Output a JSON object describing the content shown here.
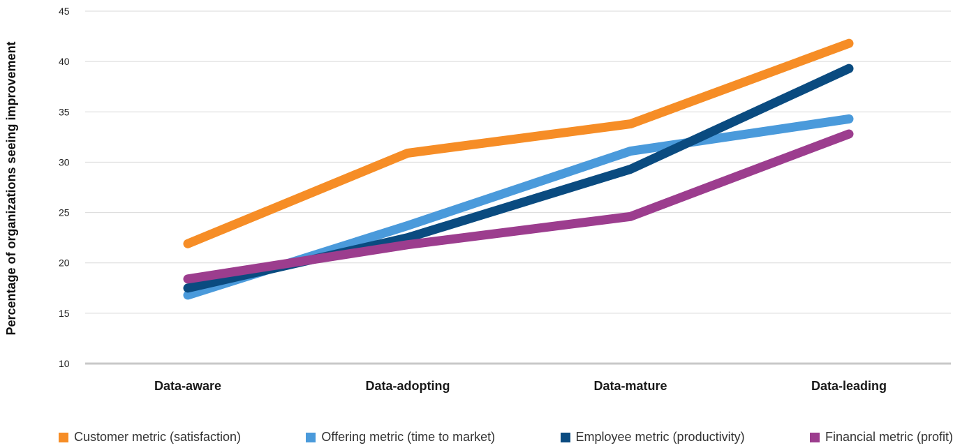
{
  "chart_data": {
    "type": "line",
    "ylabel": "Percentage of organizations seeing improvement",
    "xlabel": "",
    "ylim": [
      10,
      45
    ],
    "yticks": [
      10,
      15,
      20,
      25,
      30,
      35,
      40,
      45
    ],
    "grid": true,
    "legend_position": "bottom",
    "categories": [
      "Data-aware",
      "Data-adopting",
      "Data-mature",
      "Data-leading"
    ],
    "series": [
      {
        "name": "Customer metric (satisfaction)",
        "color": "#F68D26",
        "values": [
          21.9,
          30.9,
          33.8,
          41.8
        ]
      },
      {
        "name": "Offering metric (time to market)",
        "color": "#4A9ADB",
        "values": [
          16.8,
          23.7,
          31.1,
          34.3
        ]
      },
      {
        "name": "Employee metric (productivity)",
        "color": "#0A4B80",
        "values": [
          17.5,
          22.5,
          29.3,
          39.3
        ]
      },
      {
        "name": "Financial metric (profit)",
        "color": "#9C3D8E",
        "values": [
          18.4,
          21.8,
          24.6,
          32.8
        ]
      }
    ]
  }
}
